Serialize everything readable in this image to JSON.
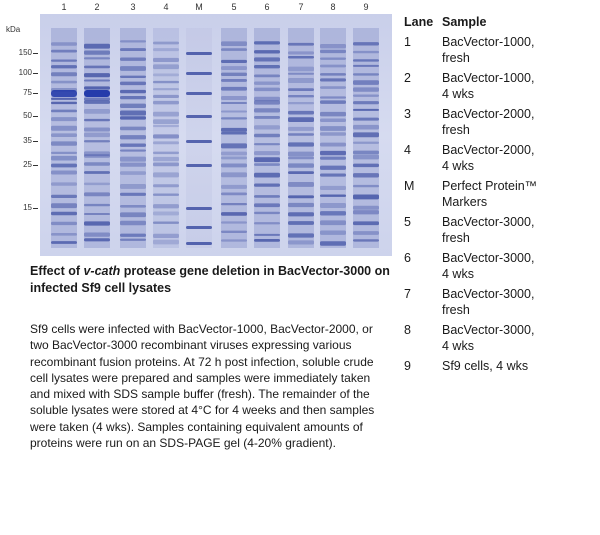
{
  "gel": {
    "lane_numbers": [
      "1",
      "2",
      "3",
      "4",
      "M",
      "5",
      "6",
      "7",
      "8",
      "9"
    ],
    "unit_label": "kDa",
    "mw_markers": [
      "150",
      "100",
      "75",
      "50",
      "35",
      "25",
      "15"
    ],
    "colors": {
      "background": "#d8dcef",
      "band": "#2c3f9a",
      "band_strong": "#1d35a8"
    }
  },
  "caption": {
    "title_prefix": "Effect of ",
    "title_gene": "v-cath",
    "title_suffix": " protease gene deletion in BacVector-3000 on infected Sf9 cell lysates",
    "body": "Sf9 cells were infected with BacVector-1000, BacVector-2000, or two BacVector-3000 recombinant viruses expressing various recombinant fusion proteins. At 72 h post infection, soluble crude cell lysates were prepared and samples were immediately taken and mixed with SDS sample buffer (fresh). The remainder of the soluble lysates were stored at 4°C for 4 weeks and then samples were taken (4 wks). Samples containing equivalent amounts of proteins were run on an SDS-PAGE gel (4-20% gradient)."
  },
  "legend": {
    "header_lane": "Lane",
    "header_sample": "Sample",
    "rows": [
      {
        "lane": "1",
        "sample": [
          "BacVector-1000,",
          "fresh"
        ]
      },
      {
        "lane": "2",
        "sample": [
          "BacVector-1000,",
          "4 wks"
        ]
      },
      {
        "lane": "3",
        "sample": [
          "BacVector-2000,",
          "fresh"
        ]
      },
      {
        "lane": "4",
        "sample": [
          "BacVector-2000,",
          "4 wks"
        ]
      },
      {
        "lane": "M",
        "sample": [
          "Perfect Protein™",
          "Markers"
        ]
      },
      {
        "lane": "5",
        "sample": [
          "BacVector-3000,",
          "fresh"
        ]
      },
      {
        "lane": "6",
        "sample": [
          "BacVector-3000,",
          "4 wks"
        ]
      },
      {
        "lane": "7",
        "sample": [
          "BacVector-3000,",
          "fresh"
        ]
      },
      {
        "lane": "8",
        "sample": [
          "BacVector-3000,",
          "4 wks"
        ]
      },
      {
        "lane": "9",
        "sample": [
          "Sf9 cells, 4 wks"
        ]
      }
    ]
  }
}
